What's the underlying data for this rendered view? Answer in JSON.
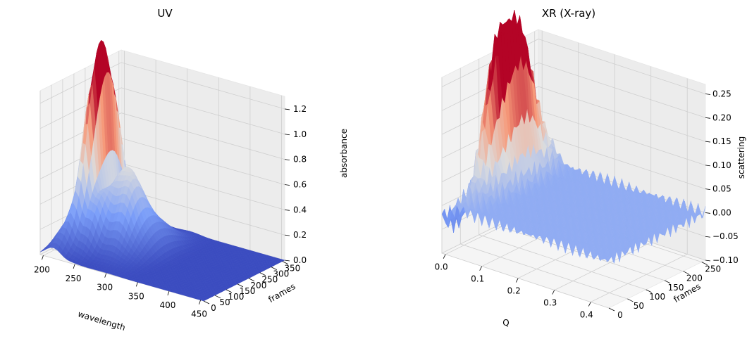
{
  "chart_data": [
    {
      "type": "surface3d",
      "title": "UV",
      "xlabel": "wavelength",
      "ylabel": "frames",
      "zlabel": "absorbance",
      "xticks": [
        "200",
        "250",
        "300",
        "350",
        "400",
        "450"
      ],
      "yticks": [
        "0",
        "50",
        "100",
        "150",
        "200",
        "250",
        "300",
        "350"
      ],
      "zticks": [
        "0.0",
        "0.2",
        "0.4",
        "0.6",
        "0.8",
        "1.0",
        "1.2"
      ],
      "xlim": [
        195,
        455
      ],
      "ylim": [
        0,
        360
      ],
      "zlim": [
        0,
        1.3
      ],
      "colormap": "coolwarm",
      "peaks": [
        {
          "wavelength": 230,
          "frames": 200,
          "absorbance": 1.25
        },
        {
          "wavelength": 225,
          "frames": 150,
          "absorbance": 0.85
        },
        {
          "wavelength": 260,
          "frames": 200,
          "absorbance": 0.55
        },
        {
          "wavelength": 280,
          "frames": 160,
          "absorbance": 0.4
        }
      ]
    },
    {
      "type": "surface3d",
      "title": "XR (X-ray)",
      "xlabel": "Q",
      "ylabel": "frames",
      "zlabel": "scattering",
      "xticks": [
        "0.0",
        "0.1",
        "0.2",
        "0.3",
        "0.4"
      ],
      "yticks": [
        "0",
        "50",
        "100",
        "150",
        "200",
        "250"
      ],
      "zticks": [
        "−0.10",
        "−0.05",
        "0.00",
        "0.05",
        "0.10",
        "0.15",
        "0.20",
        "0.25"
      ],
      "xlim": [
        -0.01,
        0.45
      ],
      "ylim": [
        0,
        260
      ],
      "zlim": [
        -0.1,
        0.27
      ],
      "colormap": "coolwarm",
      "peaks": [
        {
          "Q": 0.01,
          "frames": 130,
          "value": 0.25
        },
        {
          "Q": 0.015,
          "frames": 190,
          "value": 0.22
        },
        {
          "Q": 0.03,
          "frames": 140,
          "value": 0.08
        }
      ]
    }
  ]
}
